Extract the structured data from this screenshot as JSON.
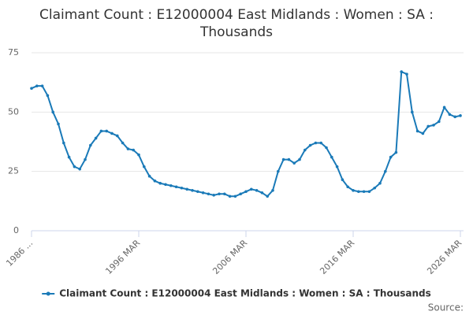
{
  "chart_data": {
    "type": "line",
    "title": "Claimant Count : E12000004 East Midlands : Women : SA : Thousands",
    "source": "Source:",
    "categories": [
      "1986 ...",
      null,
      null,
      null,
      null,
      null,
      null,
      null,
      null,
      null,
      null,
      null,
      null,
      null,
      null,
      null,
      null,
      null,
      null,
      null,
      "1996 MAR",
      null,
      null,
      null,
      null,
      null,
      null,
      null,
      null,
      null,
      null,
      null,
      null,
      null,
      null,
      null,
      null,
      null,
      null,
      null,
      "2006 MAR",
      null,
      null,
      null,
      null,
      null,
      null,
      null,
      null,
      null,
      null,
      null,
      null,
      null,
      null,
      null,
      null,
      null,
      null,
      null,
      "2016 MAR",
      null,
      null,
      null,
      null,
      null,
      null,
      null,
      null,
      null,
      null,
      null,
      null,
      null,
      null,
      null,
      null,
      null,
      null,
      null,
      "2026 MAR"
    ],
    "series": [
      {
        "name": "Claimant Count : E12000004 East Midlands : Women : SA : Thousands",
        "color": "#1a7ab8",
        "values": [
          60,
          61,
          61,
          57,
          50,
          45,
          37,
          31,
          27,
          26,
          30,
          36,
          39,
          42,
          42,
          41,
          40,
          37,
          34.5,
          34,
          32,
          27,
          23,
          21,
          20,
          19.5,
          19,
          18.5,
          18,
          17.5,
          17,
          16.5,
          16,
          15.5,
          15,
          15.5,
          15.5,
          14.5,
          14.5,
          15.5,
          16.5,
          17.5,
          17,
          16,
          14.5,
          17,
          25,
          30,
          30,
          28.5,
          30,
          34,
          36,
          37,
          37,
          35,
          31,
          27,
          21.5,
          18.5,
          17,
          16.5,
          16.5,
          16.5,
          18,
          20,
          25,
          31,
          33,
          67,
          66,
          50,
          42,
          41,
          44,
          44.5,
          46,
          52,
          49,
          48,
          48.5
        ]
      }
    ],
    "ylim": [
      0,
      75
    ],
    "yticks": [
      0,
      25,
      50,
      75
    ],
    "grid": true,
    "legend": "bottom"
  }
}
